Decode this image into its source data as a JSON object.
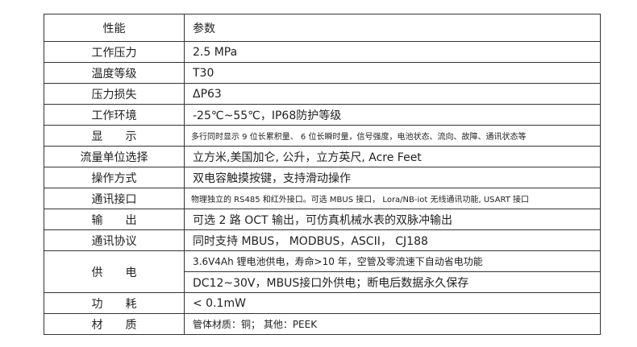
{
  "table": {
    "header": {
      "key": "性能",
      "value": "参数"
    },
    "rows": [
      {
        "key": "工作压力",
        "value": "2.5 MPa"
      },
      {
        "key": "温度等级",
        "value": "T30"
      },
      {
        "key": "压力损失",
        "value": "ΔP63"
      },
      {
        "key": "工作环境",
        "value": "-25℃~55℃，IP68防护等级"
      },
      {
        "key": "显示",
        "value": "多行同时显示 9 位长累积量、 6 位长瞬时量，信号强度，电池状态、流向、故障、通讯状态等"
      },
      {
        "key": "流量单位选择",
        "value": "立方米,美国加仑, 公升，立方英尺, Acre Feet"
      },
      {
        "key": "操作方式",
        "value": "双电容触摸按键，支持滑动操作"
      },
      {
        "key": "通讯接口",
        "value": "物理独立的 RS485 和红外接口。可选 MBUS 接口， Lora/NB-iot 无线通讯功能, USART 接口"
      },
      {
        "key": "输出",
        "value": "可选 2 路 OCT 输出，可仿真机械水表的双脉冲输出"
      },
      {
        "key": "通讯协议",
        "value": "同时支持 MBUS， MODBUS，ASCII， CJ188"
      },
      {
        "key": "供电",
        "values": [
          "3.6V4Ah 锂电池供电，寿命>10 年，空管及零流速下自动省电功能",
          "DC12~30V，MBUS接口外供电；断电后数据永久保存"
        ]
      },
      {
        "key": "功耗",
        "value": "< 0.1mW"
      },
      {
        "key": "材质",
        "value": "管体材质：铜； 其他：PEEK"
      }
    ]
  }
}
